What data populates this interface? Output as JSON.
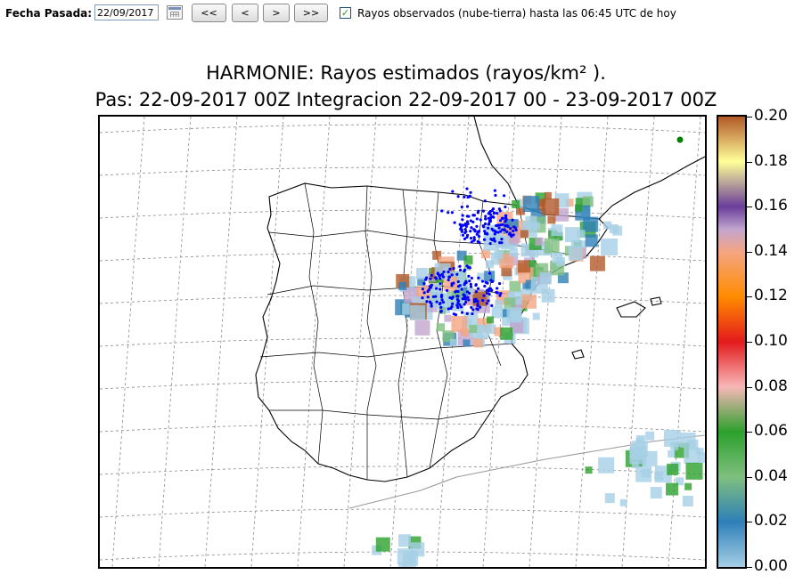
{
  "toolbar": {
    "fecha_label": "Fecha Pasada:",
    "date_value": "22/09/2017",
    "btn_first": "<<",
    "btn_prev": "<",
    "btn_next": ">",
    "btn_last": ">>",
    "checkbox_checked": true,
    "checkbox_mark": "✓",
    "checkbox_label": "Rayos observados (nube-tierra) hasta las 06:45 UTC de hoy"
  },
  "map": {
    "title_line1": "HARMONIE: Rayos estimados  (rayos/km² ).",
    "title_line2": "Pas: 22-09-2017 00Z Integracion 22-09-2017 00 - 23-09-2017 00Z",
    "observed_color": "#0000ff",
    "highlight_dot_color": "#008000"
  },
  "colorbar": {
    "labels": [
      "0.20",
      "0.18",
      "0.16",
      "0.14",
      "0.12",
      "0.10",
      "0.08",
      "0.06",
      "0.04",
      "0.02",
      "0.00"
    ],
    "stops": [
      {
        "value": 0.0,
        "color": "#a6cfe6"
      },
      {
        "value": 0.02,
        "color": "#2e7fb8"
      },
      {
        "value": 0.04,
        "color": "#7fbf7f"
      },
      {
        "value": 0.06,
        "color": "#2ca02c"
      },
      {
        "value": 0.08,
        "color": "#f7b7b7"
      },
      {
        "value": 0.1,
        "color": "#e31a1c"
      },
      {
        "value": 0.12,
        "color": "#ff8c00"
      },
      {
        "value": 0.14,
        "color": "#f4a582"
      },
      {
        "value": 0.15,
        "color": "#c2a5cf"
      },
      {
        "value": 0.16,
        "color": "#6a3d9a"
      },
      {
        "value": 0.18,
        "color": "#ffff99"
      },
      {
        "value": 0.2,
        "color": "#b15928"
      }
    ]
  }
}
